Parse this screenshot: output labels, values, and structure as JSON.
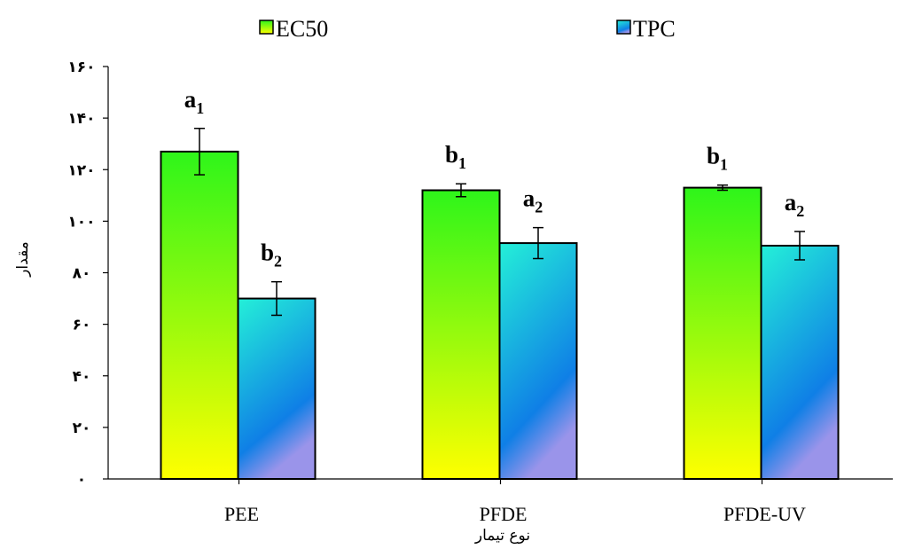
{
  "chart_data": {
    "type": "bar",
    "title": "",
    "xlabel": "نوع تیمار",
    "ylabel": "مقدار",
    "categories": [
      "PEE",
      "PFDE",
      "PFDE-UV"
    ],
    "ylim": [
      0,
      160
    ],
    "yticks": [
      0,
      20,
      40,
      60,
      80,
      100,
      120,
      140,
      160
    ],
    "ytick_labels": [
      "۰",
      "۲۰",
      "۴۰",
      "۶۰",
      "۸۰",
      "۱۰۰",
      "۱۲۰",
      "۱۴۰",
      "۱۶۰"
    ],
    "grid": false,
    "legend_position": "top",
    "series": [
      {
        "name": "EC50",
        "values": [
          127,
          112,
          113
        ],
        "errors": [
          9,
          2.5,
          1
        ],
        "significance": [
          {
            "letter": "a",
            "sub": "1"
          },
          {
            "letter": "b",
            "sub": "1"
          },
          {
            "letter": "b",
            "sub": "1"
          }
        ],
        "color_top": "#2ef51a",
        "color_bottom": "#ffff00"
      },
      {
        "name": "TPC",
        "values": [
          70,
          91.5,
          90.5
        ],
        "errors": [
          6.5,
          6,
          5.5
        ],
        "significance": [
          {
            "letter": "b",
            "sub": "2"
          },
          {
            "letter": "a",
            "sub": "2"
          },
          {
            "letter": "a",
            "sub": "2"
          }
        ],
        "color_top": "#24f0d8",
        "color_bottom": "#0f7fe6",
        "color_corner": "#9a94ea"
      }
    ]
  }
}
